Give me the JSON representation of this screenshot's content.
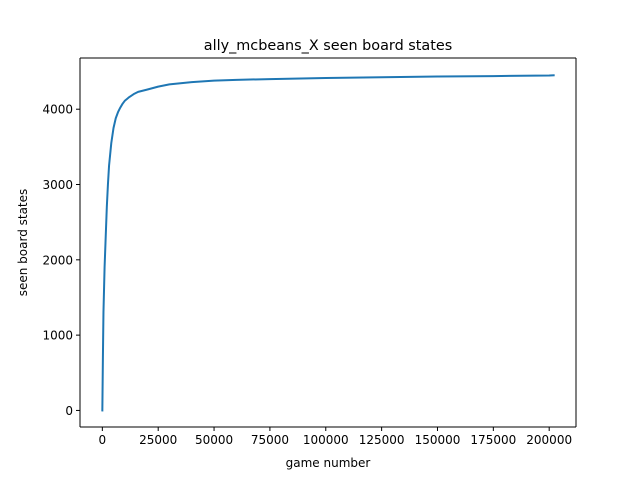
{
  "chart_data": {
    "type": "line",
    "title": "ally_mcbeans_X seen board states",
    "xlabel": "game number",
    "ylabel": "seen board states",
    "xlim": [
      -10000,
      212000
    ],
    "ylim": [
      -220,
      4680
    ],
    "grid": false,
    "xticks": [
      0,
      25000,
      50000,
      75000,
      100000,
      125000,
      150000,
      175000,
      200000
    ],
    "yticks": [
      0,
      1000,
      2000,
      3000,
      4000
    ],
    "colors": {
      "series": "#1f77b4"
    },
    "series": [
      {
        "x": [
          0,
          250,
          500,
          1000,
          1500,
          2000,
          2500,
          3000,
          4000,
          5000,
          6000,
          7000,
          8000,
          9000,
          10000,
          12000,
          14000,
          16000,
          20000,
          25000,
          30000,
          40000,
          50000,
          60000,
          75000,
          100000,
          125000,
          150000,
          175000,
          200000,
          202000
        ],
        "values": [
          0,
          700,
          1300,
          1900,
          2300,
          2700,
          3000,
          3250,
          3550,
          3750,
          3880,
          3960,
          4020,
          4070,
          4110,
          4160,
          4200,
          4230,
          4260,
          4300,
          4330,
          4360,
          4380,
          4390,
          4400,
          4415,
          4425,
          4435,
          4440,
          4448,
          4450
        ]
      }
    ]
  }
}
